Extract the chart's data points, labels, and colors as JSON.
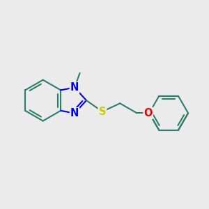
{
  "bg_color": "#ebebeb",
  "bond_color": "#2d7d6b",
  "N_color": "#0000ee",
  "S_color": "#cccc00",
  "O_color": "#ee0000",
  "line_width": 1.5,
  "font_size": 10.5,
  "fig_width": 3.0,
  "fig_height": 3.0,
  "dpi": 100,
  "xlim": [
    0,
    10
  ],
  "ylim": [
    0,
    10
  ]
}
